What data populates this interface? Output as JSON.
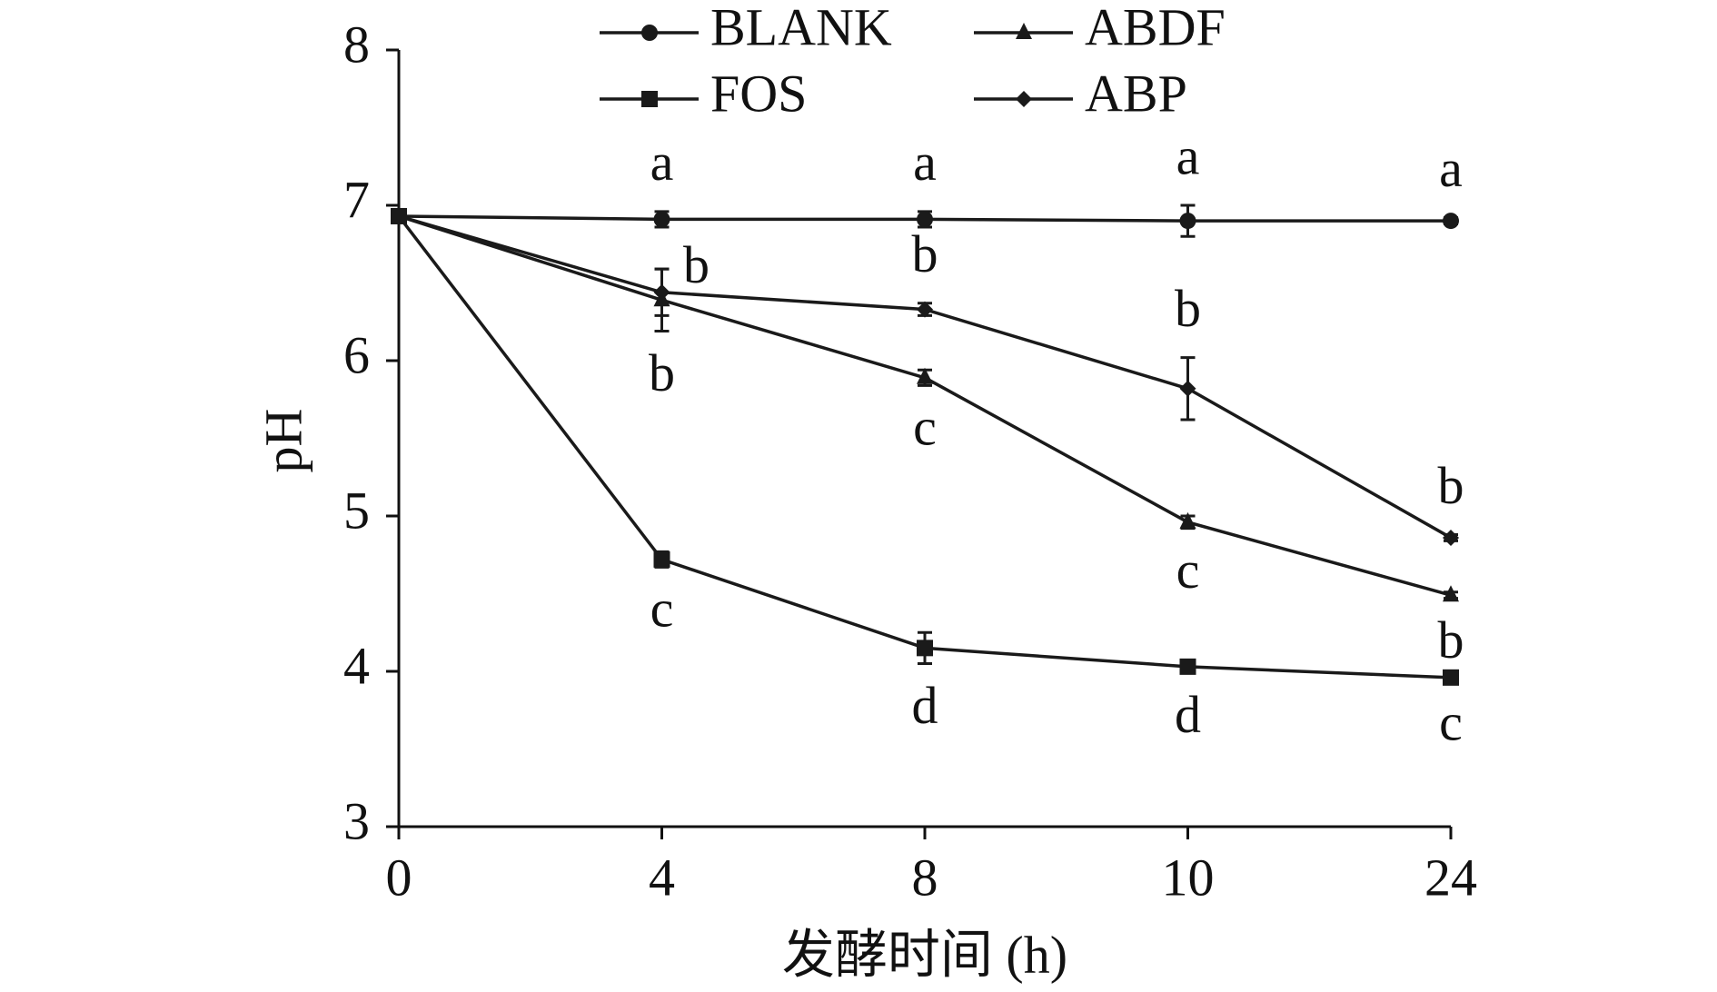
{
  "chart_data": {
    "type": "line",
    "x_label": "发酵时间 (h)",
    "y_label": "pH",
    "categories": [
      "0",
      "4",
      "8",
      "10",
      "24"
    ],
    "ylim": [
      3,
      8
    ],
    "yticks": [
      3,
      4,
      5,
      6,
      7,
      8
    ],
    "series": [
      {
        "name": "BLANK",
        "color": "#1a1a1a",
        "marker": "circle",
        "values": [
          6.93,
          6.91,
          6.91,
          6.9,
          6.9
        ],
        "errors": [
          0.02,
          0.05,
          0.05,
          0.1,
          0.02
        ],
        "letters": [
          null,
          "a",
          "a",
          "a",
          "a"
        ]
      },
      {
        "name": "ABDF",
        "color": "#1a1a1a",
        "marker": "triangle",
        "values": [
          6.93,
          6.39,
          5.89,
          4.96,
          4.49
        ],
        "errors": [
          0.02,
          0.2,
          0.05,
          0.04,
          0.02
        ],
        "letters": [
          null,
          "b",
          "c",
          "c",
          "b"
        ]
      },
      {
        "name": "FOS",
        "color": "#1a1a1a",
        "marker": "square",
        "values": [
          6.93,
          4.72,
          4.15,
          4.03,
          3.96
        ],
        "errors": [
          0.02,
          0.05,
          0.1,
          0.04,
          0.02
        ],
        "letters": [
          null,
          "c",
          "d",
          "d",
          "c"
        ]
      },
      {
        "name": "ABP",
        "color": "#1a1a1a",
        "marker": "diamond",
        "values": [
          6.93,
          6.44,
          6.33,
          5.82,
          4.86
        ],
        "errors": [
          0.02,
          0.15,
          0.04,
          0.2,
          0.02
        ],
        "letters": [
          null,
          "b",
          "b",
          "b",
          "b"
        ]
      }
    ]
  }
}
